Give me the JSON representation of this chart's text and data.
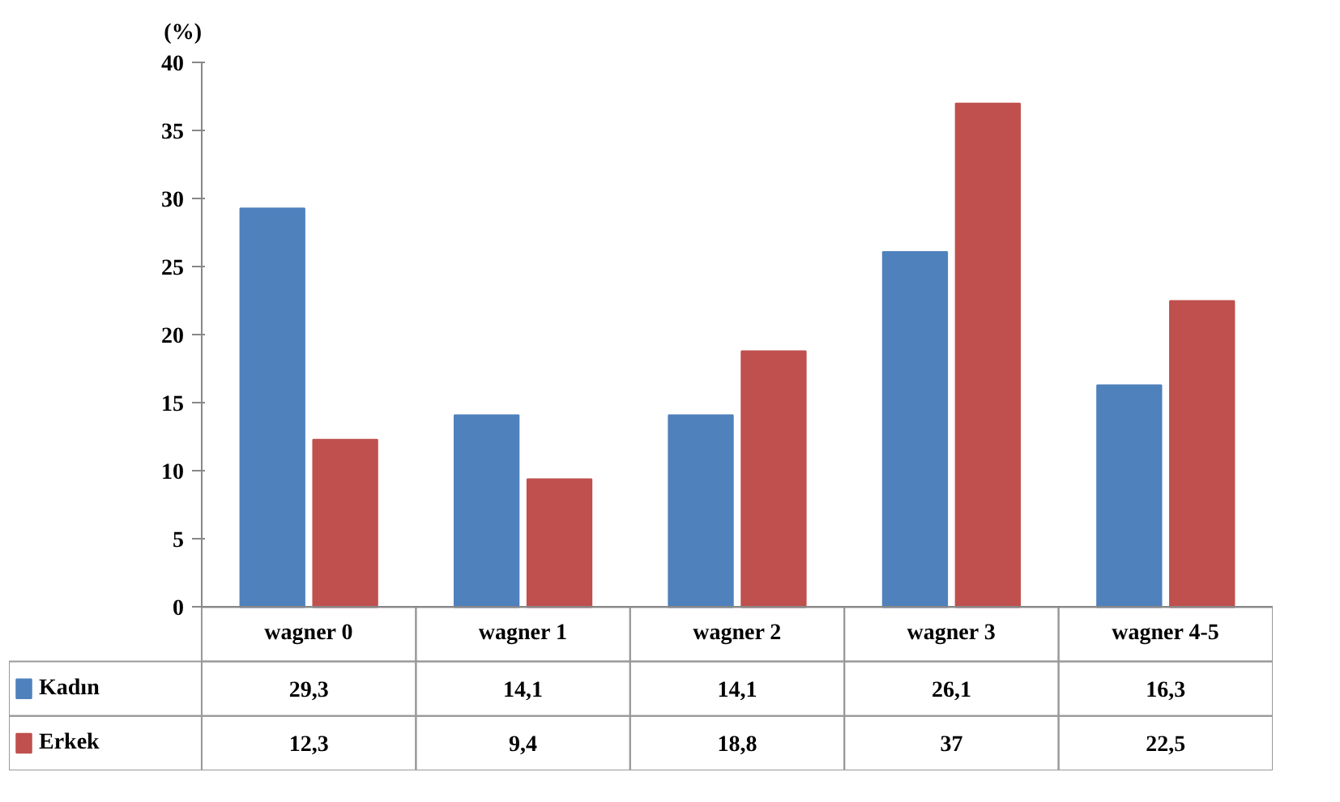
{
  "chart_data": {
    "type": "bar",
    "ylabel": "(%)",
    "categories": [
      "wagner 0",
      "wagner 1",
      "wagner 2",
      "wagner 3",
      "wagner 4-5"
    ],
    "series": [
      {
        "name": "Kadın",
        "color": "#4f81bd",
        "values": [
          29.3,
          14.1,
          14.1,
          26.1,
          16.3
        ],
        "value_labels": [
          "29,3",
          "14,1",
          "14,1",
          "26,1",
          "16,3"
        ]
      },
      {
        "name": "Erkek",
        "color": "#c0504d",
        "values": [
          12.3,
          9.4,
          18.8,
          37,
          22.5
        ],
        "value_labels": [
          "12,3",
          "9,4",
          "18,8",
          "37",
          "22,5"
        ]
      }
    ],
    "ylim": [
      0,
      40
    ],
    "yticks": [
      0,
      5,
      10,
      15,
      20,
      25,
      30,
      35,
      40
    ],
    "grid": false,
    "legend": "bottom",
    "data_labels": true
  }
}
